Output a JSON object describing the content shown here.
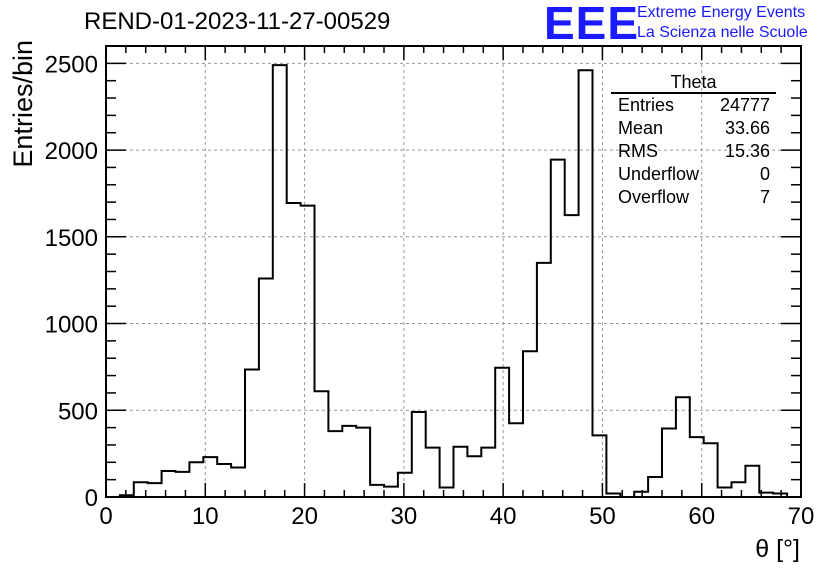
{
  "title": "REND-01-2023-11-27-00529",
  "logo": {
    "mark": "EEE",
    "line1": "Extreme Energy Events",
    "line2": "La Scienza nelle Scuole",
    "color": "#1a1aff"
  },
  "stats": {
    "title": "Theta",
    "rows": [
      {
        "label": "Entries",
        "value": "24777"
      },
      {
        "label": "Mean",
        "value": "33.66"
      },
      {
        "label": "RMS",
        "value": "15.36"
      },
      {
        "label": "Underflow",
        "value": "0"
      },
      {
        "label": "Overflow",
        "value": "7"
      }
    ]
  },
  "chart_data": {
    "type": "bar",
    "style": "step-histogram",
    "xlabel": "θ [°]",
    "ylabel": "Entries/bin",
    "xlim": [
      0,
      70
    ],
    "ylim": [
      0,
      2600
    ],
    "grid": true,
    "bin_width": 1.4,
    "x_ticks": [
      0,
      10,
      20,
      30,
      40,
      50,
      60,
      70
    ],
    "y_ticks": [
      0,
      500,
      1000,
      1500,
      2000,
      2500
    ],
    "values": [
      0,
      10,
      85,
      80,
      150,
      145,
      200,
      230,
      190,
      170,
      735,
      1260,
      2490,
      1695,
      1680,
      610,
      380,
      410,
      400,
      70,
      60,
      140,
      490,
      285,
      55,
      290,
      235,
      285,
      745,
      425,
      840,
      1350,
      1945,
      1625,
      2460,
      355,
      20,
      0,
      30,
      115,
      395,
      575,
      345,
      310,
      55,
      85,
      180,
      25,
      20,
      0
    ]
  }
}
